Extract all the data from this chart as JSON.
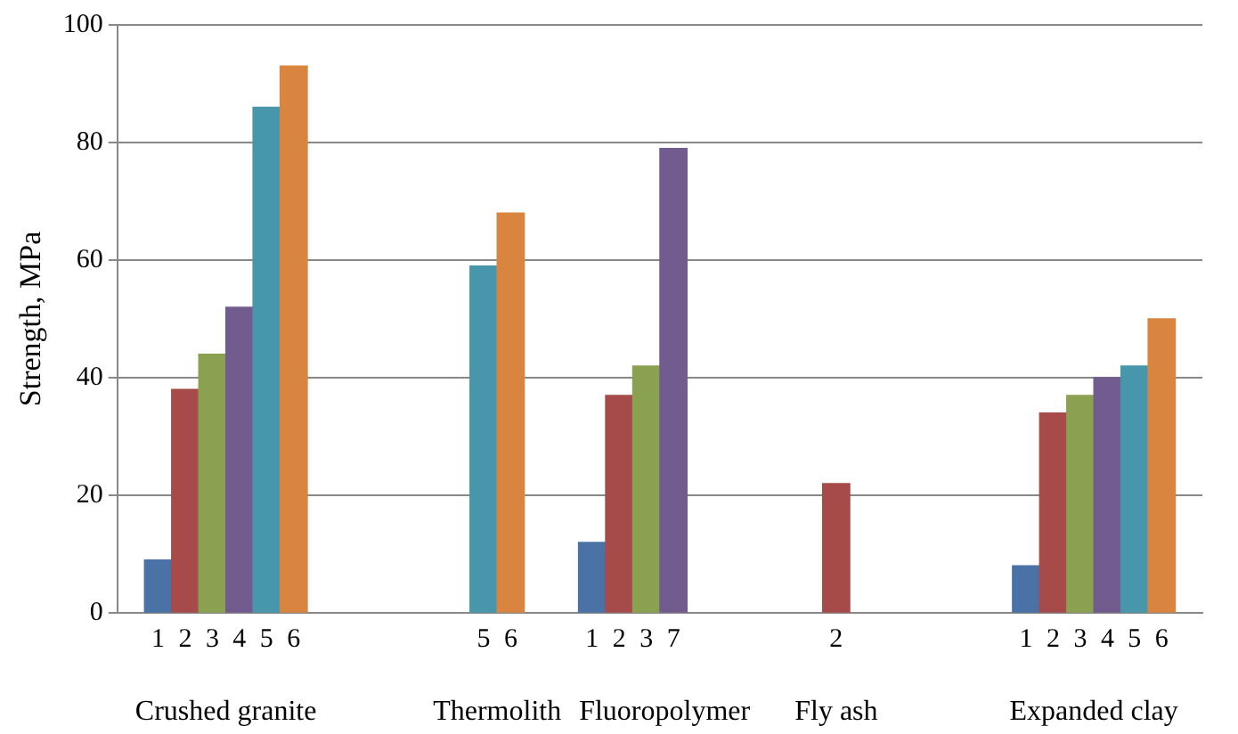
{
  "chart_data": {
    "type": "bar",
    "ylabel": "Strength, MPa",
    "categories": [
      null,
      "1",
      "2",
      "3",
      "4",
      "5",
      "6",
      null,
      null,
      null,
      null,
      null,
      null,
      "5",
      "6",
      null,
      null,
      "1",
      "2",
      "3",
      "7",
      null,
      null,
      null,
      null,
      null,
      "2",
      null,
      null,
      null,
      null,
      null,
      null,
      "1",
      "2",
      "3",
      "4",
      "5",
      "6",
      null
    ],
    "values": [
      null,
      9,
      38,
      44,
      52,
      86,
      93,
      null,
      null,
      null,
      null,
      null,
      null,
      59,
      68,
      null,
      null,
      12,
      37,
      42,
      79,
      null,
      null,
      null,
      null,
      null,
      22,
      null,
      null,
      null,
      null,
      null,
      null,
      8,
      34,
      37,
      40,
      42,
      50,
      null
    ],
    "colors": [
      null,
      "#4a72a6",
      "#a64b4a",
      "#8aa152",
      "#725b8f",
      "#4796ab",
      "#d9843f",
      null,
      null,
      null,
      null,
      null,
      null,
      "#4796ab",
      "#d9843f",
      null,
      null,
      "#4a72a6",
      "#a64b4a",
      "#8aa152",
      "#725b8f",
      null,
      null,
      null,
      null,
      null,
      "#a64b4a",
      null,
      null,
      null,
      null,
      null,
      null,
      "#4a72a6",
      "#a64b4a",
      "#8aa152",
      "#725b8f",
      "#4796ab",
      "#d9843f",
      null
    ],
    "annotations": [
      "Crushed granite",
      "Thermolith",
      "Fluoropolymer",
      "Fly ash",
      "Expanded clay"
    ],
    "ylim": [
      0,
      100
    ],
    "yticks": [
      0,
      20,
      40,
      60,
      80,
      100
    ],
    "grid": "y",
    "legend": false
  }
}
